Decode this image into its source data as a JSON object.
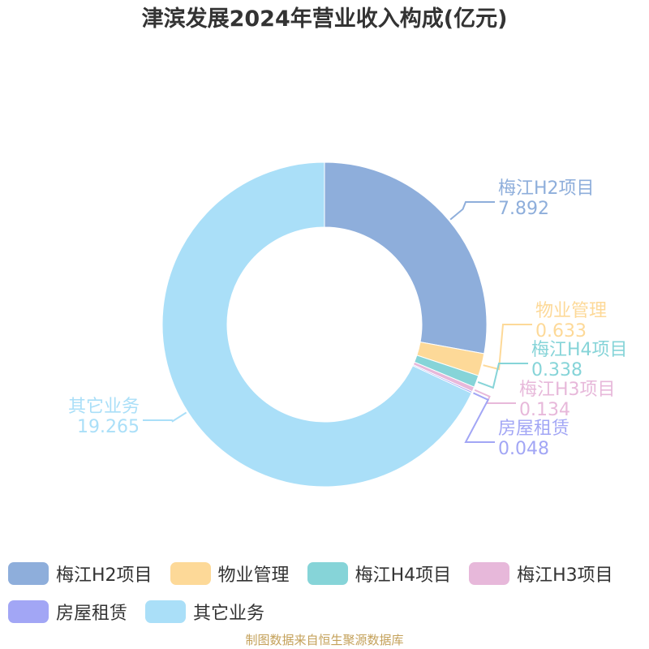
{
  "title": "津滨发展2024年营业收入构成(亿元)",
  "source": "制图数据来自恒生聚源数据库",
  "chart_data": {
    "type": "pie",
    "variant": "donut",
    "title": "津滨发展2024年营业收入构成(亿元)",
    "unit": "亿元",
    "slices": [
      {
        "name": "梅江H2项目",
        "value": 7.892,
        "label_value": "7.892",
        "color": "#8eaedb"
      },
      {
        "name": "物业管理",
        "value": 0.633,
        "label_value": "0.633",
        "color": "#fdd998"
      },
      {
        "name": "梅江H4项目",
        "value": 0.338,
        "label_value": "0.338",
        "color": "#86d4d8"
      },
      {
        "name": "梅江H3项目",
        "value": 0.134,
        "label_value": "0.134",
        "color": "#e7b8da"
      },
      {
        "name": "房屋租赁",
        "value": 0.048,
        "label_value": "0.048",
        "color": "#a2a6f5"
      },
      {
        "name": "其它业务",
        "value": 19.265,
        "label_value": "19.265",
        "color": "#aadff8"
      }
    ],
    "legend_position": "bottom"
  }
}
